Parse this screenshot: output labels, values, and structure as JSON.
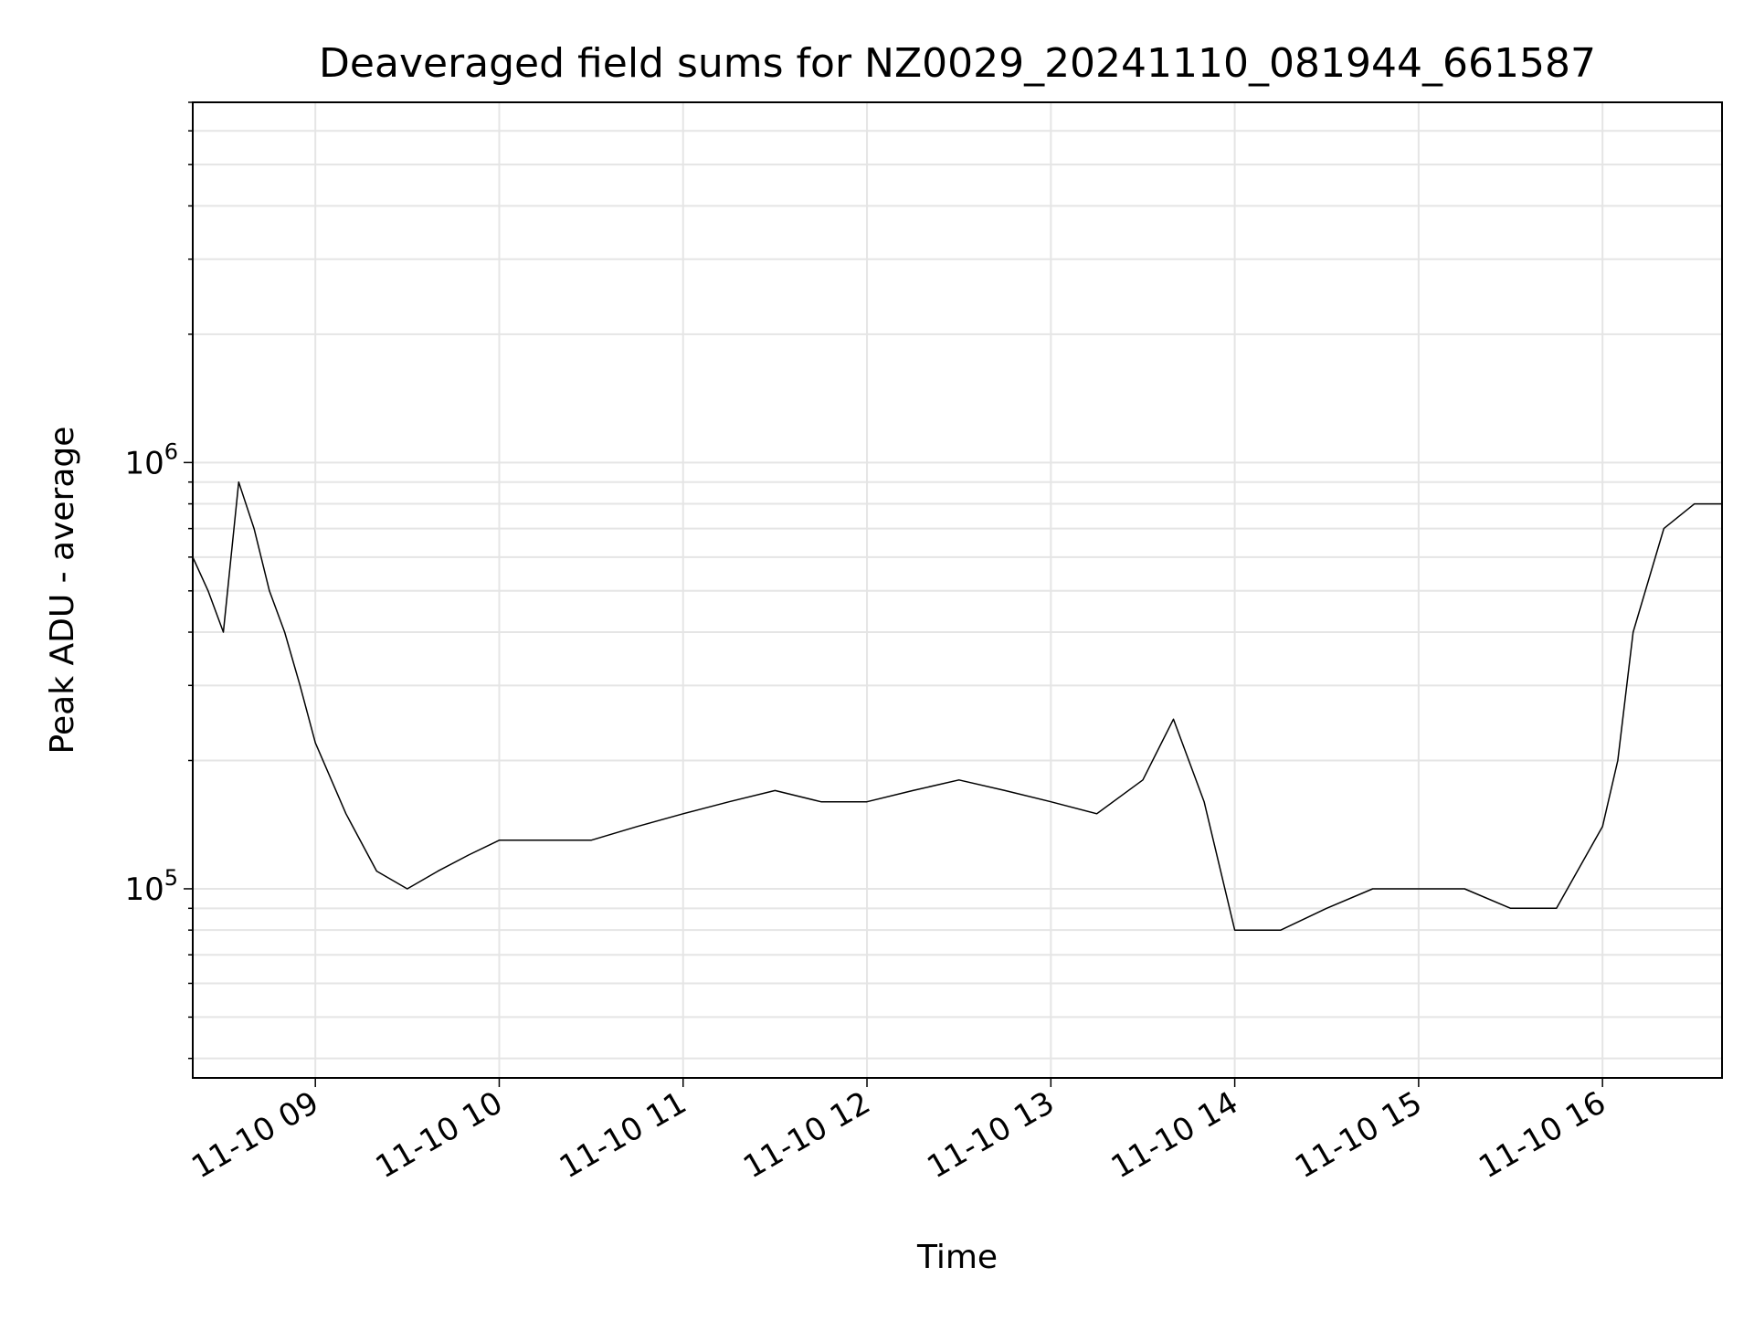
{
  "chart_data": {
    "type": "line",
    "title": "Deaveraged field sums for NZ0029_20241110_081944_661587",
    "xlabel": "Time",
    "ylabel": "Peak ADU - average",
    "yscale": "log",
    "grid": true,
    "line_color": "#000000",
    "grid_color": "#e5e5e5",
    "x_range": [
      "2024-11-10 08:20",
      "2024-11-10 16:39"
    ],
    "ylim": [
      36000,
      7000000
    ],
    "x_ticks": [
      {
        "value": "2024-11-10 09:00",
        "label": "11-10 09"
      },
      {
        "value": "2024-11-10 10:00",
        "label": "11-10 10"
      },
      {
        "value": "2024-11-10 11:00",
        "label": "11-10 11"
      },
      {
        "value": "2024-11-10 12:00",
        "label": "11-10 12"
      },
      {
        "value": "2024-11-10 13:00",
        "label": "11-10 13"
      },
      {
        "value": "2024-11-10 14:00",
        "label": "11-10 14"
      },
      {
        "value": "2024-11-10 15:00",
        "label": "11-10 15"
      },
      {
        "value": "2024-11-10 16:00",
        "label": "11-10 16"
      }
    ],
    "y_ticks": [
      {
        "value": 100000,
        "base": "10",
        "exp": "5"
      },
      {
        "value": 1000000,
        "base": "10",
        "exp": "6"
      }
    ],
    "series": [
      {
        "x": [
          "2024-11-10 08:20",
          "2024-11-10 08:25",
          "2024-11-10 08:30",
          "2024-11-10 08:35",
          "2024-11-10 08:40",
          "2024-11-10 08:45",
          "2024-11-10 08:50",
          "2024-11-10 08:55",
          "2024-11-10 09:00",
          "2024-11-10 09:10",
          "2024-11-10 09:20",
          "2024-11-10 09:30",
          "2024-11-10 09:40",
          "2024-11-10 09:50",
          "2024-11-10 10:00",
          "2024-11-10 10:15",
          "2024-11-10 10:30",
          "2024-11-10 10:45",
          "2024-11-10 11:00",
          "2024-11-10 11:15",
          "2024-11-10 11:30",
          "2024-11-10 11:45",
          "2024-11-10 12:00",
          "2024-11-10 12:15",
          "2024-11-10 12:30",
          "2024-11-10 12:45",
          "2024-11-10 13:00",
          "2024-11-10 13:15",
          "2024-11-10 13:30",
          "2024-11-10 13:40",
          "2024-11-10 13:50",
          "2024-11-10 14:00",
          "2024-11-10 14:15",
          "2024-11-10 14:30",
          "2024-11-10 14:45",
          "2024-11-10 15:00",
          "2024-11-10 15:15",
          "2024-11-10 15:30",
          "2024-11-10 15:45",
          "2024-11-10 16:00",
          "2024-11-10 16:05",
          "2024-11-10 16:10",
          "2024-11-10 16:20",
          "2024-11-10 16:30",
          "2024-11-10 16:39"
        ],
        "y": [
          600000,
          500000,
          400000,
          900000,
          700000,
          500000,
          400000,
          300000,
          220000,
          150000,
          110000,
          100000,
          110000,
          120000,
          130000,
          130000,
          130000,
          140000,
          150000,
          160000,
          170000,
          160000,
          160000,
          170000,
          180000,
          170000,
          160000,
          150000,
          180000,
          250000,
          160000,
          80000,
          80000,
          90000,
          100000,
          100000,
          100000,
          90000,
          90000,
          140000,
          200000,
          400000,
          700000,
          800000,
          800000
        ]
      }
    ]
  }
}
